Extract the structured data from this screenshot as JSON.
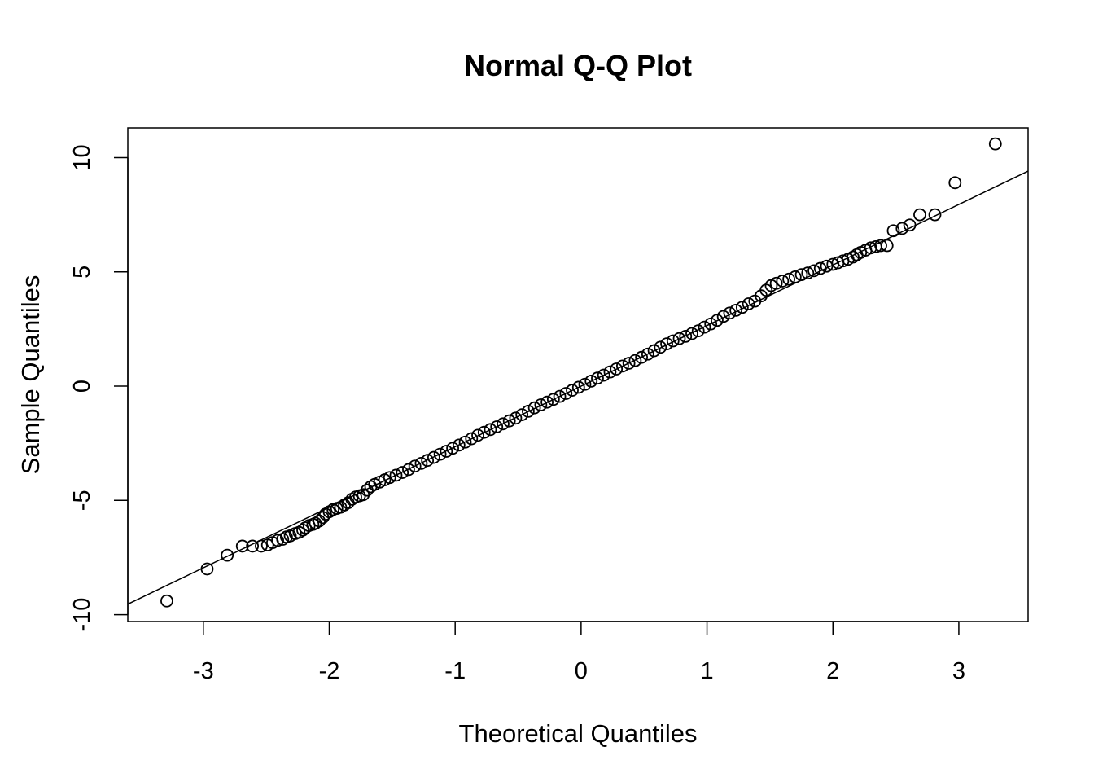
{
  "chart_data": {
    "type": "scatter",
    "title": "Normal Q-Q Plot",
    "xlabel": "Theoretical Quantiles",
    "ylabel": "Sample Quantiles",
    "xlim": [
      -3.6,
      3.55
    ],
    "ylim": [
      -10.3,
      11.3
    ],
    "x_ticks": [
      -3,
      -2,
      -1,
      0,
      1,
      2,
      3
    ],
    "x_tick_labels": [
      "-3",
      "-2",
      "-1",
      "0",
      "1",
      "2",
      "3"
    ],
    "y_ticks": [
      -10,
      -5,
      0,
      5,
      10
    ],
    "y_tick_labels": [
      "-10",
      "-5",
      "0",
      "5",
      "10"
    ],
    "grid": false,
    "legend": "none",
    "marker": "open-circle",
    "reference_line": {
      "intercept": 0.0,
      "slope": 2.65
    },
    "series_points": [
      [
        -3.29,
        -9.4
      ],
      [
        -2.97,
        -8.0
      ],
      [
        -2.81,
        -7.4
      ],
      [
        -2.69,
        -7.0
      ],
      [
        -2.61,
        -7.0
      ],
      [
        -2.54,
        -7.0
      ],
      [
        -2.49,
        -6.95
      ],
      [
        -2.45,
        -6.85
      ],
      [
        -2.41,
        -6.75
      ],
      [
        -2.37,
        -6.7
      ],
      [
        -2.34,
        -6.6
      ],
      [
        -2.31,
        -6.55
      ],
      [
        -2.27,
        -6.45
      ],
      [
        -2.24,
        -6.4
      ],
      [
        -2.21,
        -6.3
      ],
      [
        -2.19,
        -6.2
      ],
      [
        -2.16,
        -6.1
      ],
      [
        -2.13,
        -6.05
      ],
      [
        -2.11,
        -6.0
      ],
      [
        -2.08,
        -5.9
      ],
      [
        -2.05,
        -5.75
      ],
      [
        -2.03,
        -5.6
      ],
      [
        -2.0,
        -5.5
      ],
      [
        -1.97,
        -5.4
      ],
      [
        -1.94,
        -5.35
      ],
      [
        -1.91,
        -5.3
      ],
      [
        -1.88,
        -5.2
      ],
      [
        -1.85,
        -5.1
      ],
      [
        -1.82,
        -4.95
      ],
      [
        -1.79,
        -4.85
      ],
      [
        -1.76,
        -4.8
      ],
      [
        -1.73,
        -4.75
      ],
      [
        -1.7,
        -4.55
      ],
      [
        -1.67,
        -4.4
      ],
      [
        -1.64,
        -4.3
      ],
      [
        -1.6,
        -4.2
      ],
      [
        -1.56,
        -4.1
      ],
      [
        -1.52,
        -4.0
      ],
      [
        -1.47,
        -3.9
      ],
      [
        -1.42,
        -3.78
      ],
      [
        -1.37,
        -3.65
      ],
      [
        -1.32,
        -3.5
      ],
      [
        -1.27,
        -3.38
      ],
      [
        -1.22,
        -3.25
      ],
      [
        -1.17,
        -3.12
      ],
      [
        -1.12,
        -2.98
      ],
      [
        -1.07,
        -2.85
      ],
      [
        -1.02,
        -2.72
      ],
      [
        -0.97,
        -2.58
      ],
      [
        -0.92,
        -2.45
      ],
      [
        -0.87,
        -2.3
      ],
      [
        -0.82,
        -2.15
      ],
      [
        -0.77,
        -2.02
      ],
      [
        -0.72,
        -1.9
      ],
      [
        -0.67,
        -1.78
      ],
      [
        -0.62,
        -1.65
      ],
      [
        -0.57,
        -1.52
      ],
      [
        -0.52,
        -1.4
      ],
      [
        -0.47,
        -1.25
      ],
      [
        -0.42,
        -1.1
      ],
      [
        -0.37,
        -0.95
      ],
      [
        -0.32,
        -0.82
      ],
      [
        -0.27,
        -0.7
      ],
      [
        -0.22,
        -0.58
      ],
      [
        -0.17,
        -0.45
      ],
      [
        -0.12,
        -0.32
      ],
      [
        -0.07,
        -0.18
      ],
      [
        -0.02,
        -0.05
      ],
      [
        0.03,
        0.08
      ],
      [
        0.08,
        0.22
      ],
      [
        0.13,
        0.35
      ],
      [
        0.18,
        0.48
      ],
      [
        0.23,
        0.62
      ],
      [
        0.28,
        0.75
      ],
      [
        0.33,
        0.88
      ],
      [
        0.38,
        1.0
      ],
      [
        0.43,
        1.12
      ],
      [
        0.48,
        1.26
      ],
      [
        0.53,
        1.4
      ],
      [
        0.58,
        1.55
      ],
      [
        0.63,
        1.7
      ],
      [
        0.68,
        1.85
      ],
      [
        0.73,
        1.98
      ],
      [
        0.78,
        2.08
      ],
      [
        0.83,
        2.18
      ],
      [
        0.88,
        2.3
      ],
      [
        0.93,
        2.42
      ],
      [
        0.98,
        2.58
      ],
      [
        1.03,
        2.72
      ],
      [
        1.08,
        2.88
      ],
      [
        1.13,
        3.05
      ],
      [
        1.18,
        3.2
      ],
      [
        1.23,
        3.32
      ],
      [
        1.28,
        3.45
      ],
      [
        1.33,
        3.6
      ],
      [
        1.38,
        3.72
      ],
      [
        1.43,
        3.95
      ],
      [
        1.47,
        4.2
      ],
      [
        1.51,
        4.4
      ],
      [
        1.55,
        4.5
      ],
      [
        1.6,
        4.6
      ],
      [
        1.65,
        4.68
      ],
      [
        1.7,
        4.78
      ],
      [
        1.75,
        4.88
      ],
      [
        1.8,
        4.95
      ],
      [
        1.85,
        5.05
      ],
      [
        1.9,
        5.15
      ],
      [
        1.95,
        5.25
      ],
      [
        2.0,
        5.33
      ],
      [
        2.04,
        5.4
      ],
      [
        2.08,
        5.48
      ],
      [
        2.12,
        5.55
      ],
      [
        2.16,
        5.65
      ],
      [
        2.19,
        5.75
      ],
      [
        2.22,
        5.85
      ],
      [
        2.26,
        5.95
      ],
      [
        2.3,
        6.05
      ],
      [
        2.34,
        6.1
      ],
      [
        2.38,
        6.15
      ],
      [
        2.43,
        6.15
      ],
      [
        2.48,
        6.8
      ],
      [
        2.55,
        6.9
      ],
      [
        2.61,
        7.05
      ],
      [
        2.69,
        7.5
      ],
      [
        2.81,
        7.5
      ],
      [
        2.97,
        8.9
      ],
      [
        3.29,
        10.6
      ]
    ]
  }
}
